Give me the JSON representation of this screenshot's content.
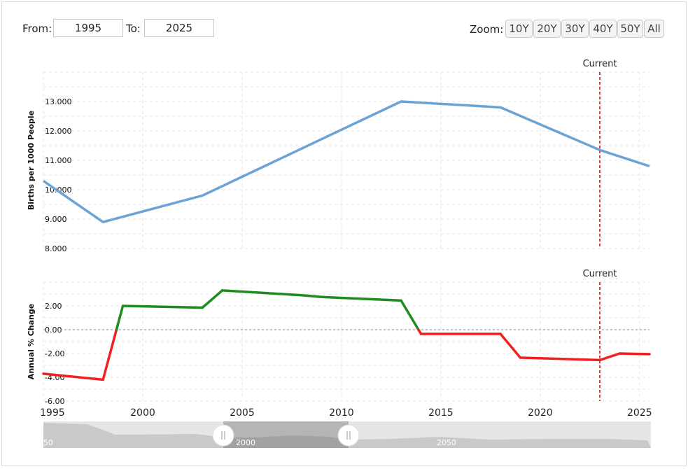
{
  "controls": {
    "from_label": "From:",
    "from_value": "1995",
    "to_label": "To:",
    "to_value": "2025",
    "zoom_label": "Zoom:",
    "zoom_options": [
      "10Y",
      "20Y",
      "30Y",
      "40Y",
      "50Y",
      "All"
    ]
  },
  "colors": {
    "birth_line": "#6aa3d6",
    "positive_change": "#1e8c1e",
    "negative_change": "#f02020",
    "current_marker": "#d64040"
  },
  "chart_data": [
    {
      "type": "line",
      "ylabel": "Births per 1000 People",
      "xlim": [
        1995,
        2025.5
      ],
      "ylim": [
        8.0,
        14.0
      ],
      "yticks": [
        "8.000",
        "9.000",
        "10.000",
        "11.000",
        "12.000",
        "13.000"
      ],
      "x": [
        1995,
        1998,
        2003,
        2008,
        2013,
        2018,
        2023,
        2025.5
      ],
      "series": [
        {
          "values": [
            10.3,
            8.9,
            9.8,
            11.4,
            13.0,
            12.8,
            11.35,
            10.8
          ]
        }
      ],
      "annotation": {
        "label": "Current",
        "x": 2023
      }
    },
    {
      "type": "line",
      "ylabel": "Annual % Change",
      "xlim": [
        1995,
        2025.5
      ],
      "ylim": [
        -6.0,
        4.0
      ],
      "yticks": [
        "-6.00",
        "-4.00",
        "-2.00",
        "0.00",
        "2.00"
      ],
      "x": [
        1995,
        1998,
        1999,
        2003,
        2004,
        2008,
        2009,
        2013,
        2014,
        2018,
        2019,
        2023,
        2024,
        2025.5
      ],
      "series": [
        {
          "values": [
            -3.7,
            -4.2,
            2.0,
            1.85,
            3.3,
            2.9,
            2.75,
            2.45,
            -0.35,
            -0.35,
            -2.35,
            -2.55,
            -2.0,
            -2.05
          ]
        }
      ],
      "annotation": {
        "label": "Current",
        "x": 2023
      }
    }
  ],
  "x_axis": {
    "ticks": [
      "1995",
      "2000",
      "2005",
      "2010",
      "2015",
      "2020",
      "2025"
    ]
  },
  "navigator": {
    "labels": [
      "50",
      "2000",
      "2050"
    ]
  }
}
